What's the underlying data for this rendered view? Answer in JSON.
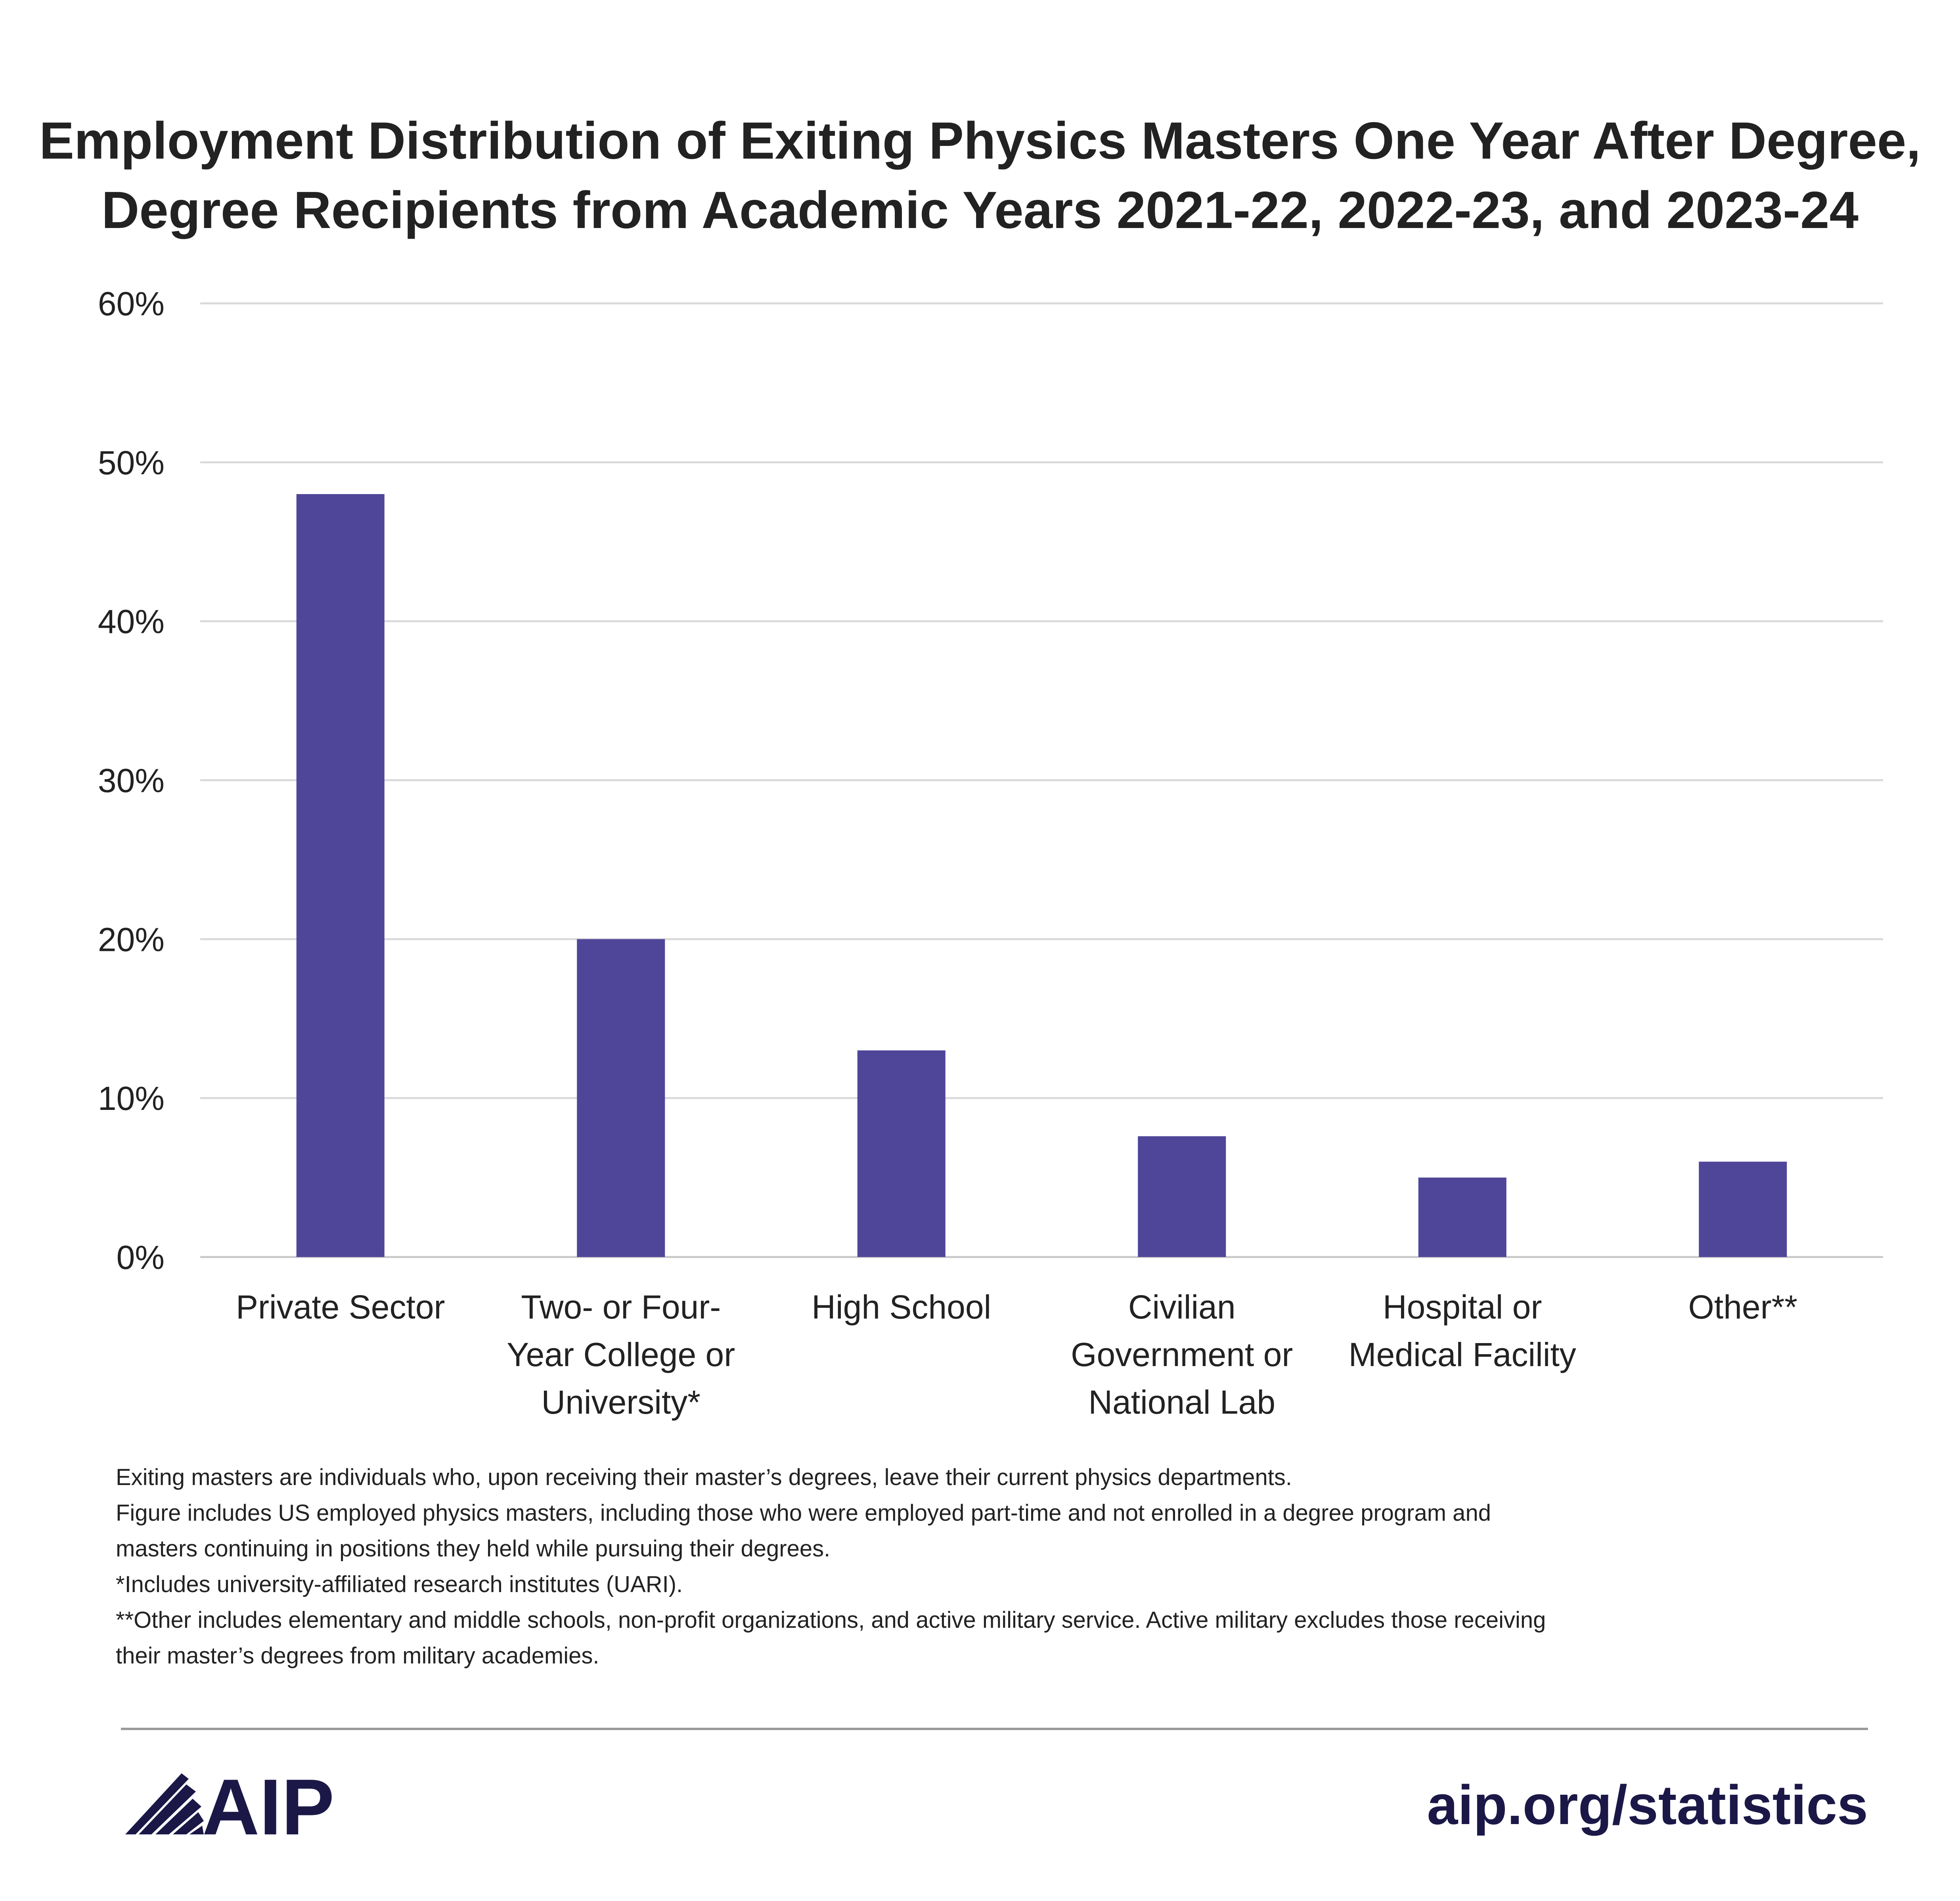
{
  "colors": {
    "bar": "#4F4599",
    "brand_navy": "#1B1848",
    "grid": "#D9D9D9",
    "baseline": "#C8C8C8",
    "divider": "#9A9A9A"
  },
  "chart_data": {
    "type": "bar",
    "title_lines": [
      "Employment Distribution of Exiting Physics Masters One Year After Degree,",
      "Degree Recipients from Academic Years 2021-22, 2022-23, and 2023-24"
    ],
    "categories": [
      "Private Sector",
      "Two- or Four-Year College or University*",
      "High School",
      "Civilian Government or National Lab",
      "Hospital or Medical Facility",
      "Other**"
    ],
    "category_label_lines": [
      [
        "Private Sector"
      ],
      [
        "Two- or Four-",
        "Year College or",
        "University*"
      ],
      [
        "High School"
      ],
      [
        "Civilian",
        "Government or",
        "National Lab"
      ],
      [
        "Hospital or",
        "Medical Facility"
      ],
      [
        "Other**"
      ]
    ],
    "values": [
      48,
      20,
      13,
      7.6,
      5,
      6
    ],
    "ylim": [
      0,
      60
    ],
    "yticks": [
      0,
      10,
      20,
      30,
      40,
      50,
      60
    ],
    "ytick_labels": [
      "0%",
      "10%",
      "20%",
      "30%",
      "40%",
      "50%",
      "60%"
    ],
    "xlabel": "",
    "ylabel": "",
    "grid": true,
    "legend": "none"
  },
  "notes": [
    "Exiting masters are individuals who, upon receiving their master’s degrees, leave their current physics departments.",
    "Figure includes US employed physics masters, including those who were employed part-time and not enrolled in a degree program and",
    "masters continuing in positions they held while pursuing their degrees.",
    "*Includes university-affiliated research institutes (UARI).",
    "**Other includes elementary and middle schools, non-profit organizations, and active military service. Active military excludes those receiving",
    "their master’s degrees from military academies."
  ],
  "footer": {
    "logo_text": "AIP",
    "logo_icon": "aip-rays-icon",
    "link_text": "aip.org/statistics"
  }
}
